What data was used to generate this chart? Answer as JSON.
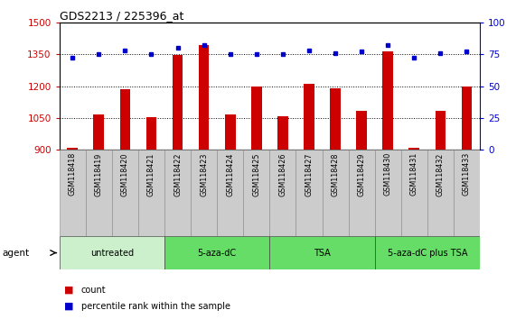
{
  "title": "GDS2213 / 225396_at",
  "samples": [
    "GSM118418",
    "GSM118419",
    "GSM118420",
    "GSM118421",
    "GSM118422",
    "GSM118423",
    "GSM118424",
    "GSM118425",
    "GSM118426",
    "GSM118427",
    "GSM118428",
    "GSM118429",
    "GSM118430",
    "GSM118431",
    "GSM118432",
    "GSM118433"
  ],
  "counts": [
    910,
    1065,
    1185,
    1055,
    1345,
    1395,
    1065,
    1200,
    1060,
    1210,
    1190,
    1085,
    1365,
    910,
    1085,
    1200
  ],
  "percentiles": [
    72,
    75,
    78,
    75,
    80,
    82,
    75,
    75,
    75,
    78,
    76,
    77,
    82,
    72,
    76,
    77
  ],
  "bar_color": "#cc0000",
  "dot_color": "#0000cc",
  "ylim_left": [
    900,
    1500
  ],
  "ylim_right": [
    0,
    100
  ],
  "yticks_left": [
    900,
    1050,
    1200,
    1350,
    1500
  ],
  "yticks_right": [
    0,
    25,
    50,
    75,
    100
  ],
  "groups": [
    {
      "label": "untreated",
      "start": 0,
      "end": 4,
      "color": "#ccf0cc"
    },
    {
      "label": "5-aza-dC",
      "start": 4,
      "end": 8,
      "color": "#66dd66"
    },
    {
      "label": "TSA",
      "start": 8,
      "end": 12,
      "color": "#66dd66"
    },
    {
      "label": "5-aza-dC plus TSA",
      "start": 12,
      "end": 16,
      "color": "#66dd66"
    }
  ],
  "agent_label": "agent",
  "legend_count_label": "count",
  "legend_pct_label": "percentile rank within the sample",
  "axis_color_left": "#cc0000",
  "axis_color_right": "#0000cc",
  "bar_bottom": 900,
  "sample_box_color": "#cccccc",
  "bar_width": 0.4
}
